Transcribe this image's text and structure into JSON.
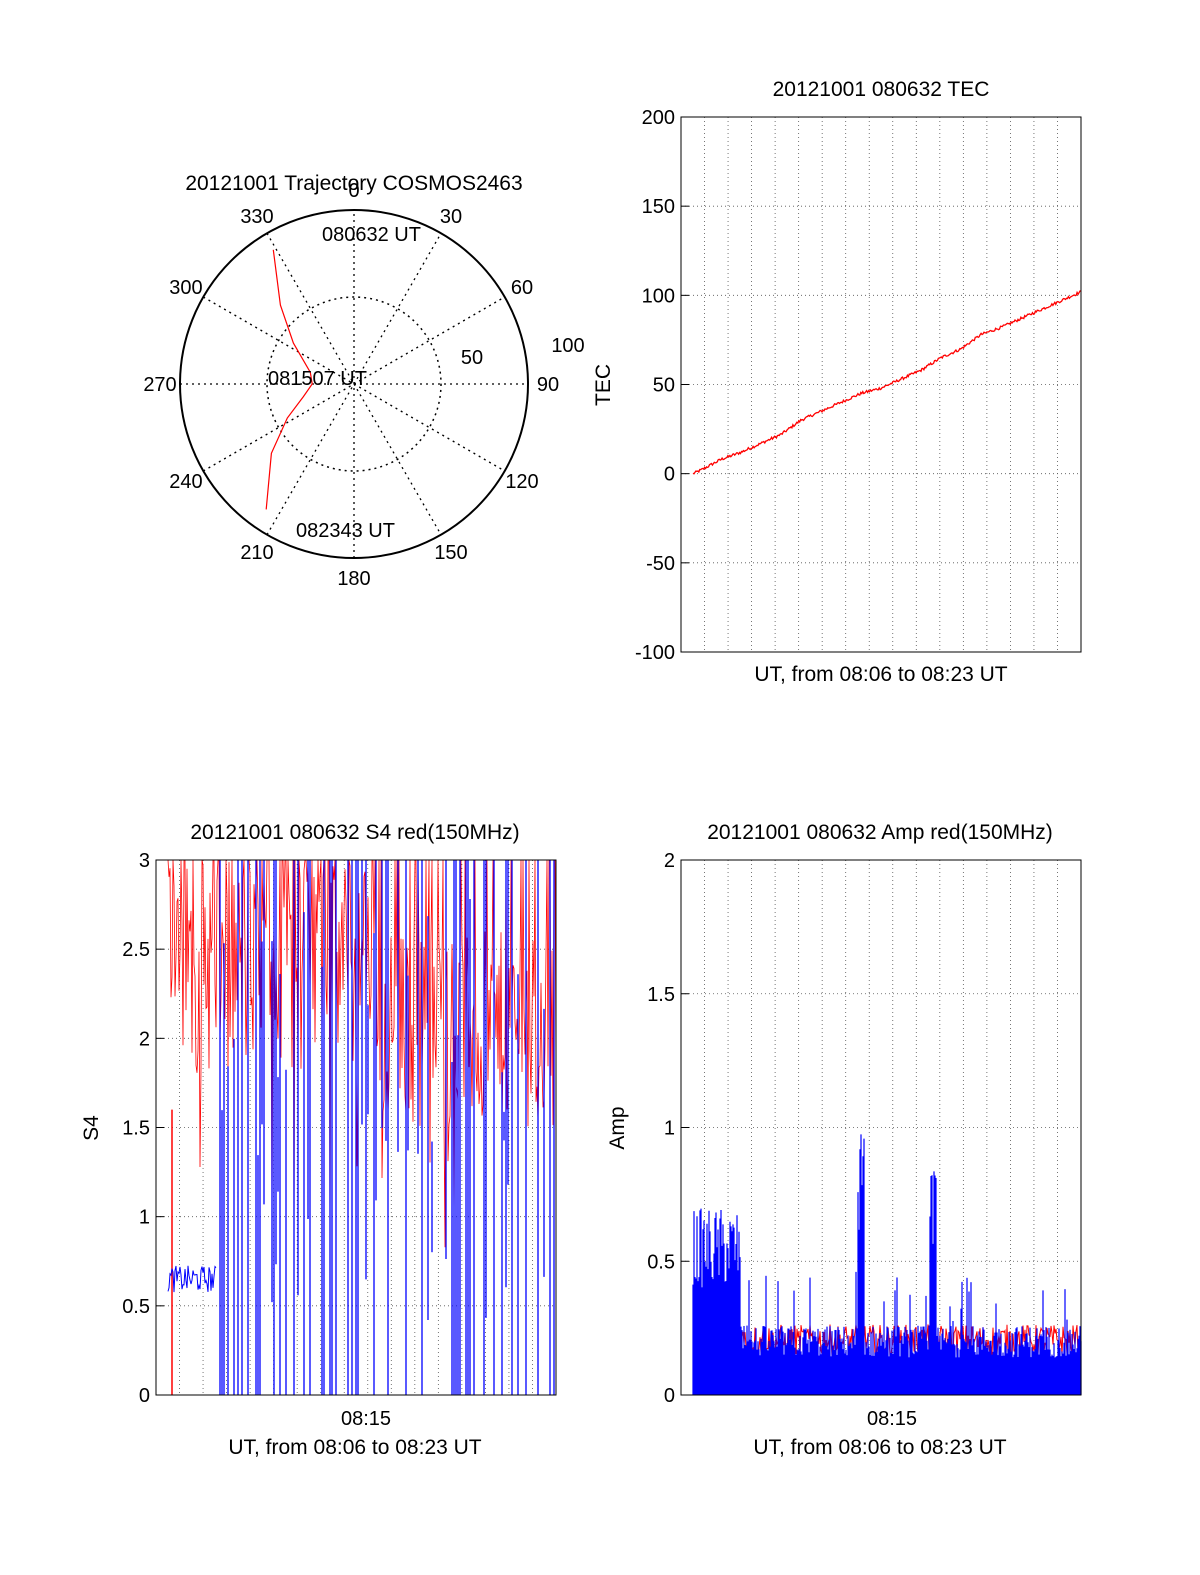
{
  "colors": {
    "red": "#ff0000",
    "blue": "#0000ff",
    "axis": "#000000"
  },
  "chart_data": [
    {
      "id": "trajectory",
      "type": "polar",
      "title": "20121001 Trajectory COSMOS2463",
      "angle_labels": [
        "0",
        "30",
        "60",
        "90",
        "120",
        "150",
        "180",
        "210",
        "240",
        "270",
        "300",
        "330"
      ],
      "radius_labels": [
        "50",
        "100"
      ],
      "rlim": [
        0,
        100
      ],
      "annotations": [
        "080632 UT",
        "081507 UT",
        "082343 UT"
      ],
      "series": [
        {
          "color": "red",
          "points": [
            [
              329,
              90
            ],
            [
              317,
              62
            ],
            [
              304,
              42
            ],
            [
              285,
              26
            ],
            [
              270,
              24
            ],
            [
              256,
              30
            ],
            [
              243,
              43
            ],
            [
              230,
              62
            ],
            [
              215,
              88
            ]
          ]
        }
      ]
    },
    {
      "id": "tec",
      "type": "line",
      "title": "20121001 080632 TEC",
      "ylabel": "TEC",
      "xlabel": "UT, from 08:06 to 08:23 UT",
      "ylim": [
        -100,
        200
      ],
      "yticks": [
        "-100",
        "-50",
        "0",
        "50",
        "100",
        "150",
        "200"
      ],
      "grid": true,
      "series": [
        {
          "color": "red",
          "x": [
            0.03,
            0.05,
            0.1,
            0.15,
            0.2,
            0.25,
            0.3,
            0.35,
            0.4,
            0.45,
            0.5,
            0.55,
            0.6,
            0.65,
            0.7,
            0.75,
            0.8,
            0.85,
            0.9,
            0.95,
            1.0
          ],
          "y": [
            0,
            2,
            8,
            12,
            17,
            22,
            30,
            35,
            40,
            45,
            48,
            53,
            58,
            65,
            70,
            78,
            82,
            87,
            92,
            97,
            102
          ]
        }
      ]
    },
    {
      "id": "s4",
      "type": "line",
      "title": "20121001 080632 S4 red(150MHz)",
      "ylabel": "S4",
      "xlabel": "UT, from 08:06 to 08:23 UT",
      "xtick": "08:15",
      "ylim": [
        0,
        3
      ],
      "yticks": [
        "0",
        "0.5",
        "1",
        "1.5",
        "2",
        "2.5",
        "3"
      ],
      "grid": true,
      "series": [
        {
          "color": "red",
          "band": [
            1.8,
            3.0
          ],
          "band_late": [
            1.5,
            2.6
          ]
        },
        {
          "color": "blue",
          "early_level": 0.65
        }
      ]
    },
    {
      "id": "amp",
      "type": "line",
      "title": "20121001 080632 Amp red(150MHz)",
      "ylabel": "Amp",
      "xlabel": "UT, from 08:06 to 08:23 UT",
      "xtick": "08:15",
      "ylim": [
        0,
        2
      ],
      "yticks": [
        "0",
        "0.5",
        "1",
        "1.5",
        "2"
      ],
      "grid": true,
      "series": [
        {
          "color": "blue",
          "early_level": 0.55,
          "late_level": 0.2
        },
        {
          "color": "red",
          "late_level": 0.18
        }
      ]
    }
  ]
}
